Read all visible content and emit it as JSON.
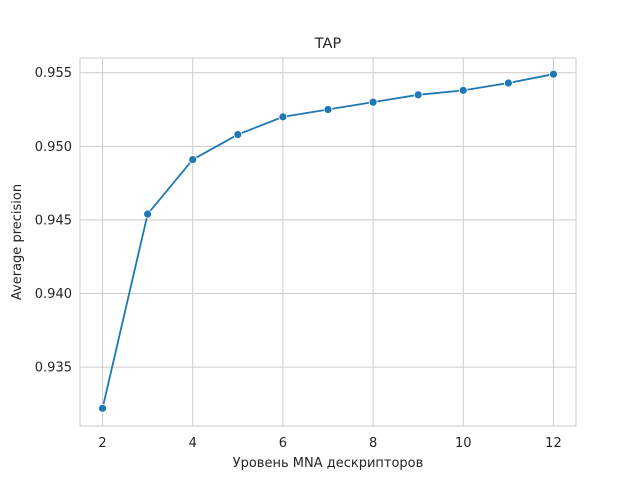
{
  "chart_data": {
    "type": "line",
    "title": "TAP",
    "xlabel": "Уровень MNA дескрипторов",
    "ylabel": "Average precision",
    "x": [
      2,
      3,
      4,
      5,
      6,
      7,
      8,
      9,
      10,
      11,
      12
    ],
    "series": [
      {
        "values": [
          0.9322,
          0.9454,
          0.9491,
          0.9508,
          0.952,
          0.9525,
          0.953,
          0.9535,
          0.9538,
          0.9543,
          0.9549
        ],
        "color": "#1f77b4"
      }
    ],
    "xlim": [
      1.5,
      12.5
    ],
    "ylim": [
      0.931,
      0.956
    ],
    "xticks": [
      2,
      4,
      6,
      8,
      10,
      12
    ],
    "xtick_labels": [
      "2",
      "4",
      "6",
      "8",
      "10",
      "12"
    ],
    "yticks": [
      0.935,
      0.94,
      0.945,
      0.95,
      0.955
    ],
    "ytick_labels": [
      "0.935",
      "0.940",
      "0.945",
      "0.950",
      "0.955"
    ],
    "grid": true,
    "marker": "circle",
    "background": "#ffffff",
    "grid_color": "#cccccc"
  }
}
